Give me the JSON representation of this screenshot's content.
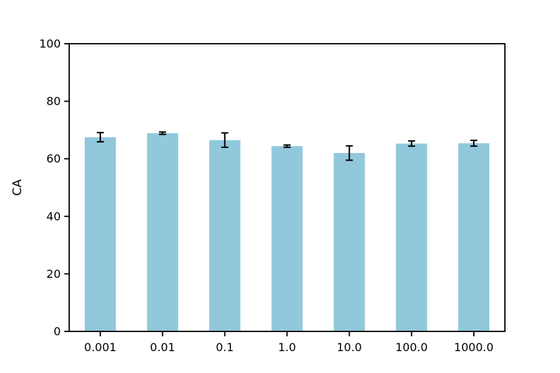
{
  "chart_data": {
    "type": "bar",
    "title": "",
    "xlabel": "",
    "ylabel": "CA",
    "categories": [
      "0.001",
      "0.01",
      "0.1",
      "1.0",
      "10.0",
      "100.0",
      "1000.0"
    ],
    "values": [
      67.5,
      68.9,
      66.5,
      64.4,
      62.0,
      65.3,
      65.4
    ],
    "errors": [
      1.6,
      0.4,
      2.5,
      0.4,
      2.5,
      0.9,
      1.0
    ],
    "ylim": [
      0,
      100
    ],
    "yticks": [
      0,
      20,
      40,
      60,
      80,
      100
    ],
    "bar_color": "#92C8DC",
    "error_color": "#000000",
    "spine_color": "#000000",
    "grid": false,
    "legend": "none",
    "bar_width_fraction": 0.5
  }
}
